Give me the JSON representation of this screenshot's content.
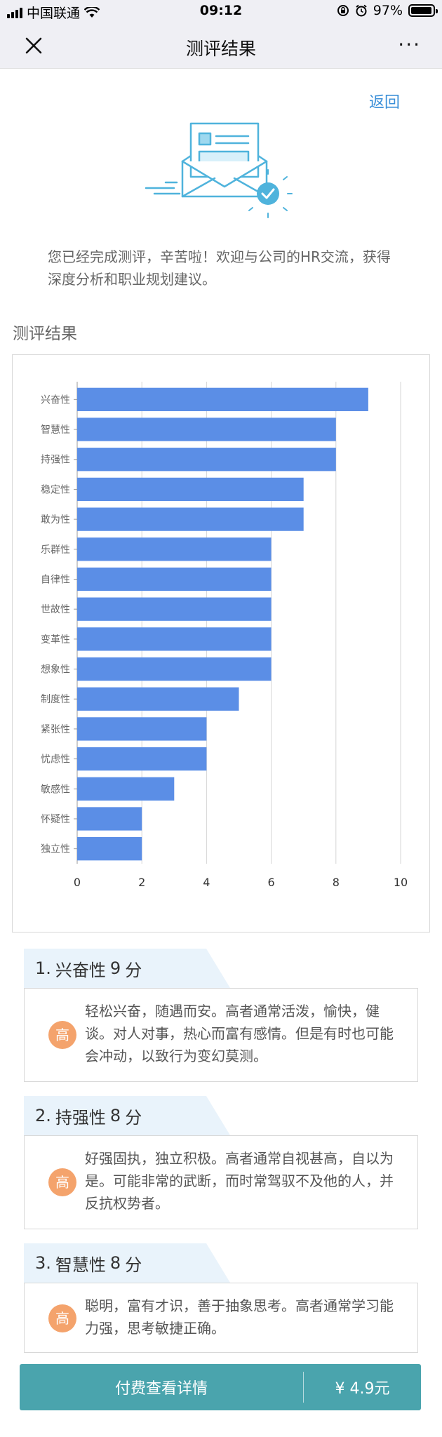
{
  "status_bar": {
    "carrier": "中国联通",
    "time": "09:12",
    "battery": "97%",
    "battery_level": 0.97
  },
  "nav": {
    "title": "测评结果",
    "more": "···"
  },
  "back_label": "返回",
  "intro_text": "您已经完成测评，辛苦啦！欢迎与公司的HR交流，获得深度分析和职业规划建议。",
  "section_title": "测评结果",
  "colors": {
    "bar": "#5b8ee6",
    "badge": "#f4a36c",
    "button": "#4aa4ad",
    "link": "#3a8fd8",
    "illustration": "#4fb3dc"
  },
  "chart_data": {
    "type": "bar",
    "orientation": "horizontal",
    "categories": [
      "兴奋性",
      "智慧性",
      "持强性",
      "稳定性",
      "敢为性",
      "乐群性",
      "自律性",
      "世故性",
      "变革性",
      "想象性",
      "制度性",
      "紧张性",
      "忧虑性",
      "敏感性",
      "怀疑性",
      "独立性"
    ],
    "values": [
      9,
      8,
      8,
      7,
      7,
      6,
      6,
      6,
      6,
      6,
      5,
      4,
      4,
      3,
      2,
      2
    ],
    "xlim": [
      0,
      10
    ],
    "xticks": [
      0,
      2,
      4,
      6,
      8,
      10
    ],
    "grid": true,
    "title": "",
    "xlabel": "",
    "ylabel": ""
  },
  "results": [
    {
      "rank": "1.",
      "trait": "兴奋性",
      "score": "9",
      "unit": "分",
      "level": "高",
      "desc": "轻松兴奋，随遇而安。高者通常活泼，愉快，健谈。对人对事，热心而富有感情。但是有时也可能会冲动，以致行为变幻莫测。"
    },
    {
      "rank": "2.",
      "trait": "持强性",
      "score": "8",
      "unit": "分",
      "level": "高",
      "desc": "好强固执，独立积极。高者通常自视甚高，自以为是。可能非常的武断，而时常驾驭不及他的人，并反抗权势者。"
    },
    {
      "rank": "3.",
      "trait": "智慧性",
      "score": "8",
      "unit": "分",
      "level": "高",
      "desc": "聪明，富有才识，善于抽象思考。高者通常学习能力强，思考敏捷正确。"
    }
  ],
  "pay": {
    "label": "付费查看详情",
    "price": "¥ 4.9元"
  }
}
